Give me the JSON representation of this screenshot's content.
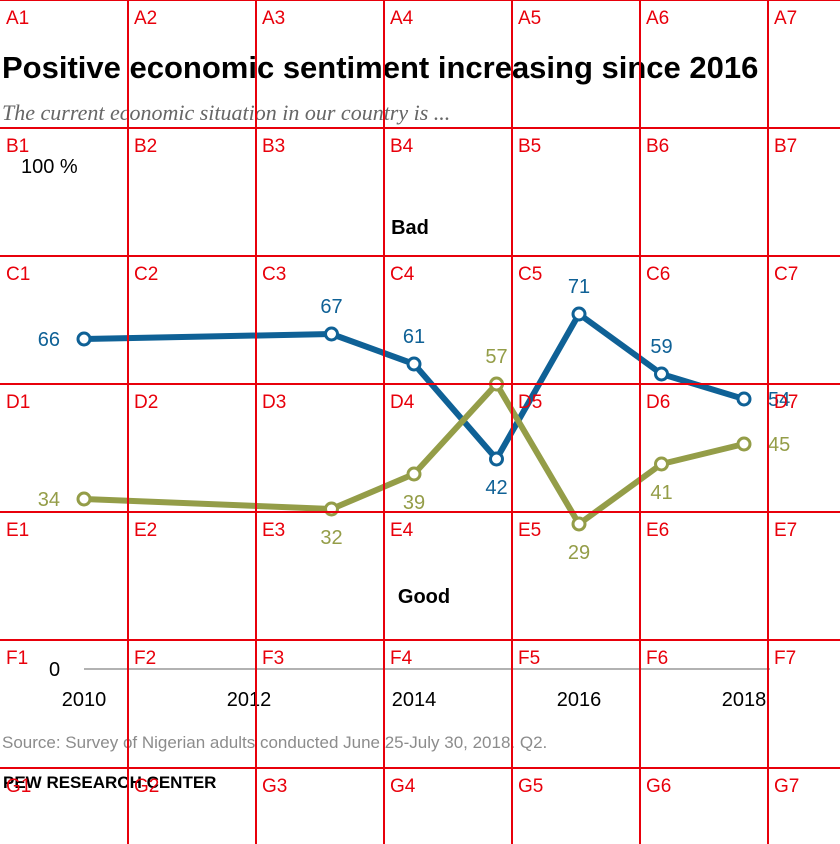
{
  "chart_data": {
    "type": "line",
    "title": "Positive economic sentiment increasing since 2016",
    "subtitle": "The current economic situation in our country is ...",
    "x": [
      2010,
      2013,
      2014,
      2015,
      2016,
      2017,
      2018
    ],
    "x_ticks": [
      "2010",
      "2012",
      "2014",
      "2016",
      "2018"
    ],
    "x_tick_values": [
      2010,
      2012,
      2014,
      2016,
      2018
    ],
    "y_ticks": [
      "0",
      "100 %"
    ],
    "ylim": [
      0,
      100
    ],
    "xlim": [
      2010,
      2018
    ],
    "grid": false,
    "series": [
      {
        "name": "Bad",
        "values": [
          66,
          67,
          61,
          42,
          71,
          59,
          54
        ],
        "labels": [
          "66",
          "67",
          "61",
          "42",
          "71",
          "59",
          "54"
        ],
        "color": "#0f6196"
      },
      {
        "name": "Good",
        "values": [
          34,
          32,
          39,
          57,
          29,
          41,
          45
        ],
        "labels": [
          "34",
          "32",
          "39",
          "57",
          "29",
          "41",
          "45"
        ],
        "color": "#949d48"
      }
    ]
  },
  "source": "Source: Survey of Nigerian adults conducted June 25-July 30, 2018. Q2.",
  "brand": "PEW RESEARCH CENTER",
  "overlay_grid": {
    "color": "#e8000b",
    "rows": [
      "A",
      "B",
      "C",
      "D",
      "E",
      "F",
      "G"
    ],
    "cols": [
      "1",
      "2",
      "3",
      "4",
      "5",
      "6",
      "7"
    ]
  }
}
